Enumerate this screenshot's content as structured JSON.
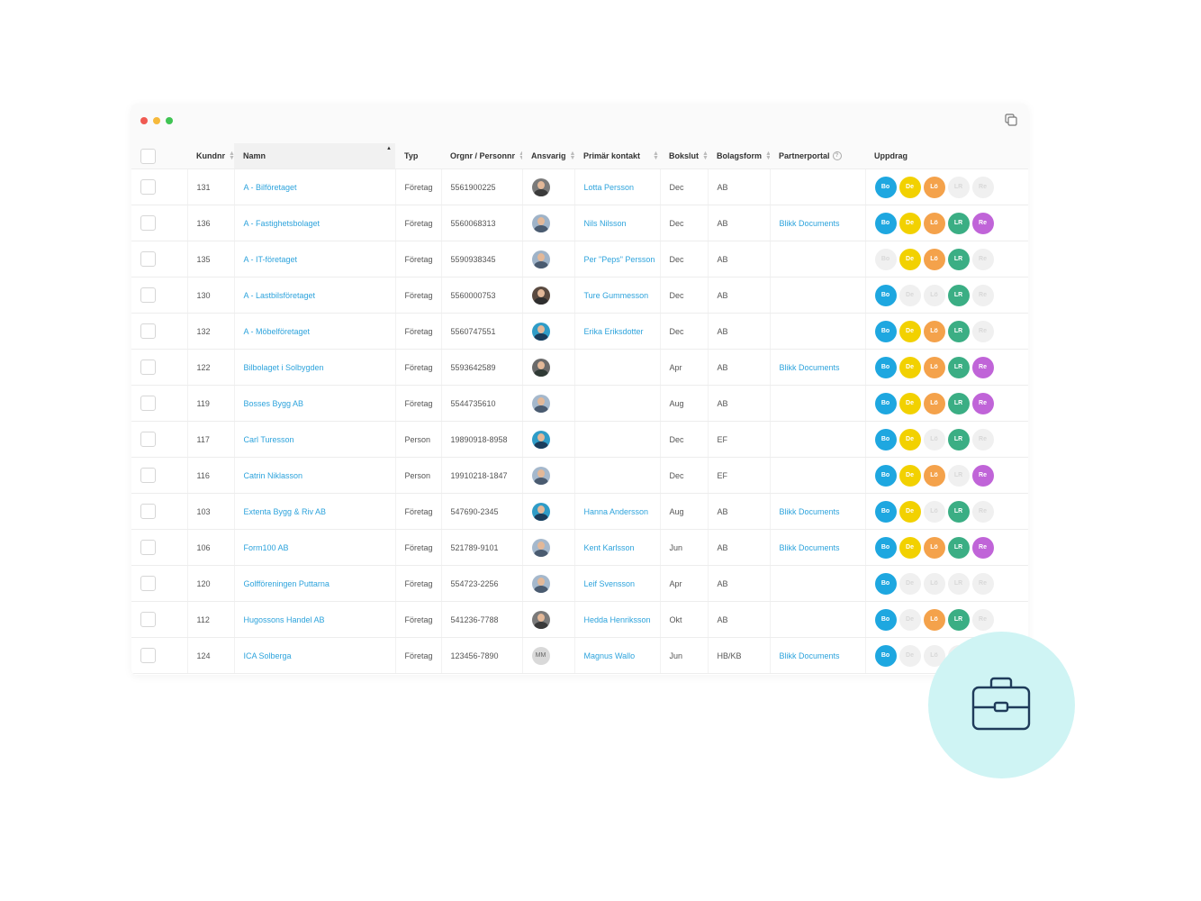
{
  "table": {
    "headers": {
      "kundnr": "Kundnr",
      "namn": "Namn",
      "typ": "Typ",
      "orgnr": "Orgnr / Personnr",
      "ansvarig": "Ansvarig",
      "primar_kontakt": "Primär kontakt",
      "bokslut": "Bokslut",
      "bolagsform": "Bolagsform",
      "partnerportal": "Partnerportal",
      "uppdrag": "Uppdrag"
    },
    "rows": [
      {
        "kundnr": "131",
        "namn": "A - Bilföretaget",
        "typ": "Företag",
        "orgnr": "5561900225",
        "avatar": "photo",
        "initials": "",
        "kontakt": "Lotta Persson",
        "bokslut": "Dec",
        "bolagsform": "AB",
        "partner": "",
        "uppdrag": [
          1,
          1,
          1,
          0,
          0
        ]
      },
      {
        "kundnr": "136",
        "namn": "A - Fastighetsbolaget",
        "typ": "Företag",
        "orgnr": "5560068313",
        "avatar": "photo",
        "initials": "",
        "kontakt": "Nils Nilsson",
        "bokslut": "Dec",
        "bolagsform": "AB",
        "partner": "Blikk Documents",
        "uppdrag": [
          1,
          1,
          1,
          1,
          1
        ]
      },
      {
        "kundnr": "135",
        "namn": "A - IT-företaget",
        "typ": "Företag",
        "orgnr": "5590938345",
        "avatar": "photo",
        "initials": "",
        "kontakt": "Per \"Peps\" Persson",
        "bokslut": "Dec",
        "bolagsform": "AB",
        "partner": "",
        "uppdrag": [
          0,
          1,
          1,
          1,
          0
        ]
      },
      {
        "kundnr": "130",
        "namn": "A - Lastbilsföretaget",
        "typ": "Företag",
        "orgnr": "5560000753",
        "avatar": "photo",
        "initials": "",
        "kontakt": "Ture Gummesson",
        "bokslut": "Dec",
        "bolagsform": "AB",
        "partner": "",
        "uppdrag": [
          1,
          0,
          0,
          1,
          0
        ]
      },
      {
        "kundnr": "132",
        "namn": "A - Möbelföretaget",
        "typ": "Företag",
        "orgnr": "5560747551",
        "avatar": "photo",
        "initials": "",
        "kontakt": "Erika Eriksdotter",
        "bokslut": "Dec",
        "bolagsform": "AB",
        "partner": "",
        "uppdrag": [
          1,
          1,
          1,
          1,
          0
        ]
      },
      {
        "kundnr": "122",
        "namn": "Bilbolaget i Solbygden",
        "typ": "Företag",
        "orgnr": "5593642589",
        "avatar": "photo",
        "initials": "",
        "kontakt": "",
        "bokslut": "Apr",
        "bolagsform": "AB",
        "partner": "Blikk Documents",
        "uppdrag": [
          1,
          1,
          1,
          1,
          1
        ]
      },
      {
        "kundnr": "119",
        "namn": "Bosses Bygg AB",
        "typ": "Företag",
        "orgnr": "5544735610",
        "avatar": "photo",
        "initials": "",
        "kontakt": "",
        "bokslut": "Aug",
        "bolagsform": "AB",
        "partner": "",
        "uppdrag": [
          1,
          1,
          1,
          1,
          1
        ]
      },
      {
        "kundnr": "117",
        "namn": "Carl Turesson",
        "typ": "Person",
        "orgnr": "19890918-8958",
        "avatar": "photo",
        "initials": "",
        "kontakt": "",
        "bokslut": "Dec",
        "bolagsform": "EF",
        "partner": "",
        "uppdrag": [
          1,
          1,
          0,
          1,
          0
        ]
      },
      {
        "kundnr": "116",
        "namn": "Catrin Niklasson",
        "typ": "Person",
        "orgnr": "19910218-1847",
        "avatar": "photo",
        "initials": "",
        "kontakt": "",
        "bokslut": "Dec",
        "bolagsform": "EF",
        "partner": "",
        "uppdrag": [
          1,
          1,
          1,
          0,
          1
        ]
      },
      {
        "kundnr": "103",
        "namn": "Extenta Bygg & Riv AB",
        "typ": "Företag",
        "orgnr": "547690-2345",
        "avatar": "photo",
        "initials": "",
        "kontakt": "Hanna Andersson",
        "bokslut": "Aug",
        "bolagsform": "AB",
        "partner": "Blikk Documents",
        "uppdrag": [
          1,
          1,
          0,
          1,
          0
        ]
      },
      {
        "kundnr": "106",
        "namn": "Form100 AB",
        "typ": "Företag",
        "orgnr": "521789-9101",
        "avatar": "photo",
        "initials": "",
        "kontakt": "Kent Karlsson",
        "bokslut": "Jun",
        "bolagsform": "AB",
        "partner": "Blikk Documents",
        "uppdrag": [
          1,
          1,
          1,
          1,
          1
        ]
      },
      {
        "kundnr": "120",
        "namn": "Golfföreningen Puttarna",
        "typ": "Företag",
        "orgnr": "554723-2256",
        "avatar": "photo",
        "initials": "",
        "kontakt": "Leif Svensson",
        "bokslut": "Apr",
        "bolagsform": "AB",
        "partner": "",
        "uppdrag": [
          1,
          0,
          0,
          0,
          0
        ]
      },
      {
        "kundnr": "112",
        "namn": "Hugossons Handel AB",
        "typ": "Företag",
        "orgnr": "541236-7788",
        "avatar": "photo",
        "initials": "",
        "kontakt": "Hedda Henriksson",
        "bokslut": "Okt",
        "bolagsform": "AB",
        "partner": "",
        "uppdrag": [
          1,
          0,
          1,
          1,
          0
        ]
      },
      {
        "kundnr": "124",
        "namn": "ICA Solberga",
        "typ": "Företag",
        "orgnr": "123456-7890",
        "avatar": "initials",
        "initials": "MM",
        "kontakt": "Magnus Wallo",
        "bokslut": "Jun",
        "bolagsform": "HB/KB",
        "partner": "Blikk Documents",
        "uppdrag": [
          1,
          0,
          0,
          0,
          0
        ]
      }
    ]
  },
  "uppdrag_types": [
    {
      "label": "Bo",
      "color": "#1ea7e0"
    },
    {
      "label": "De",
      "color": "#f2d100"
    },
    {
      "label": "Lö",
      "color": "#f4a24b"
    },
    {
      "label": "LR",
      "color": "#3bae84"
    },
    {
      "label": "Re",
      "color": "#c064d8"
    }
  ],
  "avatar_palettes": [
    [
      "#7a7a7a",
      "#3a3a3a"
    ],
    [
      "#9fb3c8",
      "#4a5b70"
    ],
    [
      "#9fb3c8",
      "#4a5b70"
    ],
    [
      "#5a4a40",
      "#2e2e2e"
    ],
    [
      "#2f9cc7",
      "#1a3d5c"
    ],
    [
      "#6a6a6a",
      "#2f3a35"
    ],
    [
      "#a5b8cc",
      "#4a5b70"
    ],
    [
      "#2f9cc7",
      "#1a3d5c"
    ],
    [
      "#a5b8cc",
      "#4a5b70"
    ],
    [
      "#2f9cc7",
      "#1a3d5c"
    ],
    [
      "#a5b8cc",
      "#4a5b70"
    ],
    [
      "#a5b8cc",
      "#4a5b70"
    ],
    [
      "#7a7a7a",
      "#3a3a3a"
    ],
    [
      "#d9d9d9",
      "#d9d9d9"
    ]
  ]
}
